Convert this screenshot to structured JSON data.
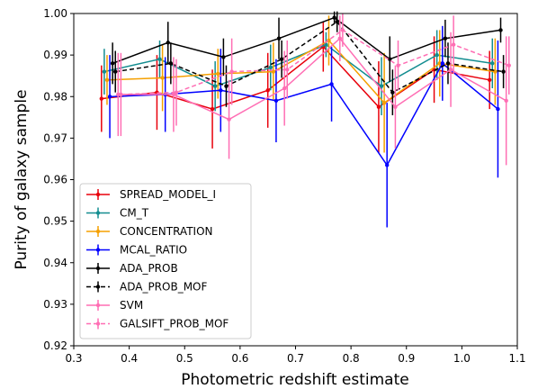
{
  "chart_data": {
    "type": "line",
    "title": "",
    "xlabel": "Photometric redshift estimate",
    "ylabel": "Purity of galaxy sample",
    "xlim": [
      0.3,
      1.1
    ],
    "ylim": [
      0.92,
      1.0
    ],
    "xticks": [
      "0.3",
      "0.4",
      "0.5",
      "0.6",
      "0.7",
      "0.8",
      "0.9",
      "1.0",
      "1.1"
    ],
    "yticks": [
      "0.92",
      "0.93",
      "0.94",
      "0.95",
      "0.96",
      "0.97",
      "0.98",
      "0.99",
      "1.00"
    ],
    "grid": false,
    "legend_position": "lower-left",
    "series": [
      {
        "name": "SPREAD_MODEL_I",
        "color": "#e8000b",
        "dash": "solid",
        "x": [
          0.35,
          0.45,
          0.55,
          0.65,
          0.75,
          0.85,
          0.95,
          1.05
        ],
        "y": [
          0.9795,
          0.981,
          0.977,
          0.9815,
          0.992,
          0.9775,
          0.9865,
          0.984
        ],
        "err": [
          0.008,
          0.009,
          0.0095,
          0.009,
          0.006,
          0.011,
          0.008,
          0.007
        ]
      },
      {
        "name": "CM_T",
        "color": "#138d90",
        "dash": "solid",
        "x": [
          0.355,
          0.455,
          0.555,
          0.655,
          0.755,
          0.855,
          0.955,
          1.055
        ],
        "y": [
          0.986,
          0.989,
          0.9825,
          0.987,
          0.9925,
          0.9825,
          0.99,
          0.988
        ],
        "err": [
          0.0055,
          0.0045,
          0.006,
          0.0055,
          0.003,
          0.007,
          0.006,
          0.006
        ]
      },
      {
        "name": "CONCENTRATION",
        "color": "#f5a000",
        "dash": "solid",
        "x": [
          0.36,
          0.46,
          0.56,
          0.66,
          0.76,
          0.86,
          0.96,
          1.06
        ],
        "y": [
          0.984,
          0.9845,
          0.9855,
          0.986,
          0.9935,
          0.9785,
          0.988,
          0.986
        ],
        "err": [
          0.006,
          0.008,
          0.006,
          0.007,
          0.006,
          0.012,
          0.008,
          0.008
        ]
      },
      {
        "name": "MCAL_RATIO",
        "color": "#0000ff",
        "dash": "solid",
        "x": [
          0.365,
          0.465,
          0.565,
          0.665,
          0.765,
          0.865,
          0.965,
          1.065
        ],
        "y": [
          0.98,
          0.9805,
          0.9815,
          0.979,
          0.983,
          0.9635,
          0.988,
          0.977
        ],
        "err": [
          0.01,
          0.009,
          0.01,
          0.01,
          0.009,
          0.015,
          0.009,
          0.0165
        ]
      },
      {
        "name": "ADA_PROB",
        "color": "#000000",
        "dash": "solid",
        "x": [
          0.37,
          0.47,
          0.57,
          0.67,
          0.77,
          0.87,
          0.97,
          1.07
        ],
        "y": [
          0.988,
          0.993,
          0.9895,
          0.994,
          0.999,
          0.989,
          0.994,
          0.996
        ],
        "err": [
          0.005,
          0.005,
          0.0045,
          0.005,
          0.0015,
          0.0055,
          0.0045,
          0.003
        ]
      },
      {
        "name": "ADA_PROB_MOF",
        "color": "#000000",
        "dash": "dashed",
        "x": [
          0.375,
          0.475,
          0.575,
          0.675,
          0.775,
          0.875,
          0.975,
          1.075
        ],
        "y": [
          0.986,
          0.988,
          0.9825,
          0.989,
          0.998,
          0.981,
          0.988,
          0.986
        ],
        "err": [
          0.005,
          0.005,
          0.005,
          0.0045,
          0.0025,
          0.0055,
          0.005,
          0.004
        ]
      },
      {
        "name": "SVM",
        "color": "#ff6eb4",
        "dash": "solid",
        "x": [
          0.38,
          0.48,
          0.58,
          0.68,
          0.78,
          0.88,
          0.98,
          1.08
        ],
        "y": [
          0.9805,
          0.9805,
          0.9745,
          0.982,
          0.994,
          0.9775,
          0.9865,
          0.979
        ],
        "err": [
          0.01,
          0.009,
          0.0095,
          0.009,
          0.0055,
          0.01,
          0.009,
          0.0155
        ]
      },
      {
        "name": "GALSIFT_PROB_MOF",
        "color": "#ff6eb4",
        "dash": "dashed",
        "x": [
          0.385,
          0.485,
          0.585,
          0.685,
          0.785,
          0.885,
          0.985,
          1.085
        ],
        "y": [
          0.9805,
          0.981,
          0.986,
          0.9865,
          0.996,
          0.9875,
          0.9925,
          0.9875
        ],
        "err": [
          0.01,
          0.008,
          0.008,
          0.007,
          0.004,
          0.006,
          0.007,
          0.007
        ]
      }
    ]
  }
}
